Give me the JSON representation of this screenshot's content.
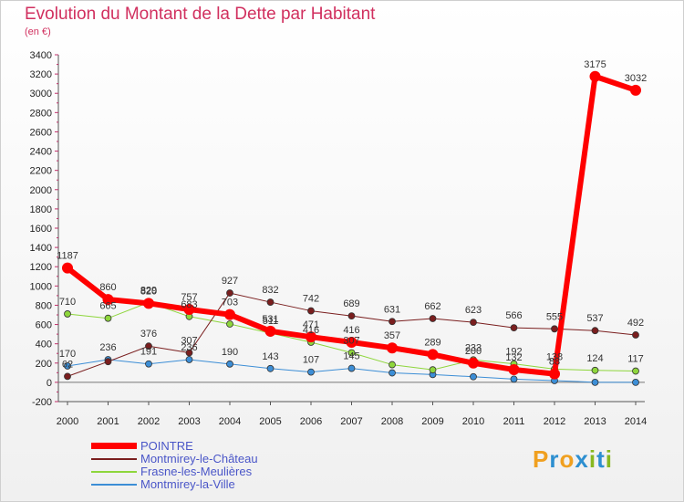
{
  "header": {
    "title": "Evolution du Montant de la Dette par Habitant",
    "subtitle": "(en €)"
  },
  "brand": {
    "letters": [
      "P",
      "r",
      "o",
      "x",
      "i",
      "t",
      "i"
    ],
    "colors": [
      "#f0a020",
      "#2d8fd0",
      "#f0a020",
      "#2d8fd0",
      "#88b820",
      "#2d8fd0",
      "#88b820"
    ]
  },
  "chart_data": {
    "type": "line",
    "title": "Evolution du Montant de la Dette par Habitant",
    "ylabel": "(en €)",
    "xlabel": "",
    "ylim": [
      -200,
      3400
    ],
    "yticks": [
      -200,
      0,
      200,
      400,
      600,
      800,
      1000,
      1200,
      1400,
      1600,
      1800,
      2000,
      2200,
      2400,
      2600,
      2800,
      3000,
      3200,
      3400
    ],
    "x": [
      "2000",
      "2001",
      "2002",
      "2003",
      "2004",
      "2005",
      "2006",
      "2007",
      "2008",
      "2009",
      "2010",
      "2011",
      "2012",
      "2013",
      "2014"
    ],
    "grid": false,
    "legend_position": "bottom-left",
    "series": [
      {
        "name": "Montmirey-la-Ville",
        "color": "#3c8ed6",
        "width": 1,
        "values": [
          170,
          236,
          191,
          236,
          190,
          143,
          107,
          145,
          98,
          81,
          58,
          33,
          18,
          0,
          0
        ],
        "labels": [
          "170",
          "236",
          "191",
          "236",
          "190",
          "143",
          "107",
          "145",
          "",
          "",
          "",
          "",
          "",
          "",
          ""
        ]
      },
      {
        "name": "Frasne-les-Meulières",
        "color": "#8ed63c",
        "width": 1,
        "values": [
          710,
          665,
          829,
          683,
          605,
          511,
          416,
          307,
          183,
          130,
          233,
          192,
          138,
          124,
          117
        ],
        "labels": [
          "710",
          "665",
          "829",
          "683",
          "",
          "511",
          "416",
          "307",
          "",
          "",
          "233",
          "192",
          "138",
          "124",
          "117"
        ]
      },
      {
        "name": "Montmirey-le-Château",
        "color": "#7a1e1e",
        "width": 1,
        "values": [
          62,
          215,
          376,
          307,
          927,
          832,
          742,
          689,
          631,
          662,
          623,
          566,
          555,
          537,
          492
        ],
        "labels": [
          "62",
          "",
          "376",
          "307",
          "927",
          "832",
          "742",
          "689",
          "631",
          "662",
          "623",
          "566",
          "555",
          "537",
          "492"
        ]
      },
      {
        "name": "POINTRE",
        "color": "#ff0000",
        "width": 6,
        "values": [
          1187,
          860,
          820,
          757,
          703,
          531,
          471,
          416,
          357,
          289,
          200,
          132,
          88,
          3175,
          3032
        ],
        "labels": [
          "1187",
          "860",
          "820",
          "757",
          "703",
          "531",
          "471",
          "416",
          "357",
          "289",
          "200",
          "132",
          "88",
          "3175",
          "3032"
        ]
      }
    ]
  }
}
